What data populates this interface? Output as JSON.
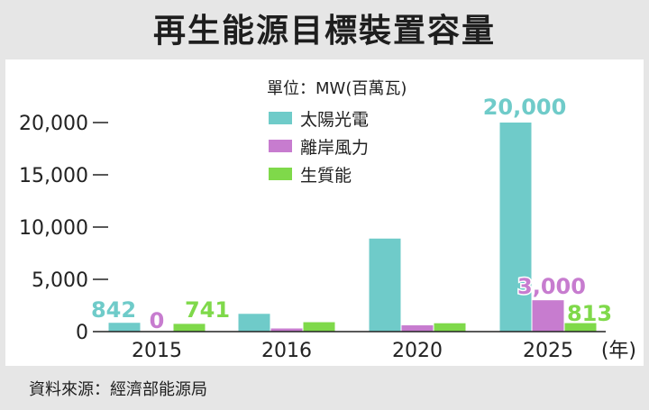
{
  "title": "再生能源目標裝置容量",
  "source": "資料來源：經濟部能源局",
  "colors": {
    "solar": "#6fcbc9",
    "wind": "#c77ccf",
    "bio": "#7fd94a",
    "background": "#e6e6e6",
    "panel": "#ffffff"
  },
  "chart_data": {
    "type": "bar",
    "unit_label": "單位：MW(百萬瓦)",
    "x_unit": "(年)",
    "categories": [
      "2015",
      "2016",
      "2020",
      "2025"
    ],
    "series": [
      {
        "name": "太陽光電",
        "values": [
          842,
          1700,
          8900,
          20000
        ]
      },
      {
        "name": "離岸風力",
        "values": [
          0,
          300,
          600,
          3000
        ]
      },
      {
        "name": "生質能",
        "values": [
          741,
          900,
          800,
          813
        ]
      }
    ],
    "data_labels": [
      {
        "series": 0,
        "index": 0,
        "text": "842"
      },
      {
        "series": 1,
        "index": 0,
        "text": "0"
      },
      {
        "series": 2,
        "index": 0,
        "text": "741"
      },
      {
        "series": 0,
        "index": 3,
        "text": "20,000"
      },
      {
        "series": 1,
        "index": 3,
        "text": "3,000"
      },
      {
        "series": 2,
        "index": 3,
        "text": "813"
      }
    ],
    "yticks": [
      0,
      5000,
      10000,
      15000,
      20000
    ],
    "ytick_labels": [
      "0",
      "5,000",
      "10,000",
      "15,000",
      "20,000"
    ],
    "ylim": [
      0,
      20000
    ],
    "grid": false,
    "legend_position": "top-center"
  }
}
